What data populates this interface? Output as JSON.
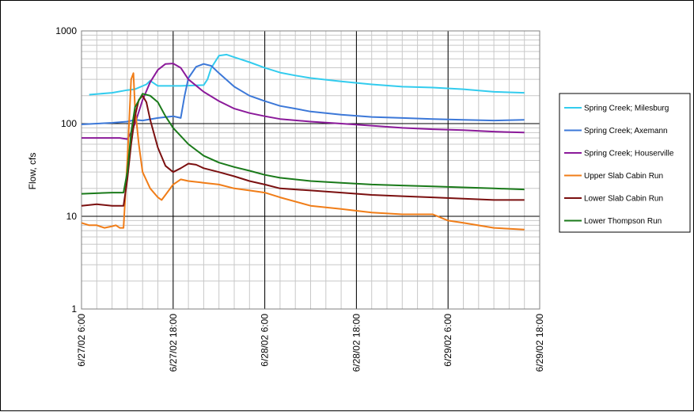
{
  "chart_data": {
    "type": "line",
    "title": "",
    "xlabel": "",
    "ylabel": "Flow, cfs",
    "y_scale": "log",
    "ylim": [
      1,
      1000
    ],
    "y_ticks": [
      "1",
      "10",
      "100",
      "1000"
    ],
    "xlim": [
      "6/27/02 6:00",
      "6/29/02 18:00"
    ],
    "x_tick_labels": [
      "6/27/02 6:00",
      "6/27/02 18:00",
      "6/28/02 6:00",
      "6/28/02 18:00",
      "6/29/02 6:00",
      "6/29/02 18:00"
    ],
    "grid": true,
    "legend_position": "right",
    "series": [
      {
        "name": "Spring Creek; Milesburg",
        "color": "#33ccee",
        "points": [
          [
            0,
            205
          ],
          [
            7,
            205
          ],
          [
            10,
            215
          ],
          [
            12,
            230
          ],
          [
            13,
            235
          ],
          [
            14.5,
            265
          ],
          [
            15,
            290
          ],
          [
            16,
            255
          ],
          [
            19,
            255
          ],
          [
            22,
            260
          ],
          [
            22.5,
            300
          ],
          [
            23,
            400
          ],
          [
            24,
            540
          ],
          [
            25,
            555
          ],
          [
            26,
            520
          ],
          [
            28,
            460
          ],
          [
            30,
            400
          ],
          [
            32,
            355
          ],
          [
            34,
            330
          ],
          [
            36,
            310
          ],
          [
            40,
            285
          ],
          [
            44,
            265
          ],
          [
            48,
            250
          ],
          [
            52,
            245
          ],
          [
            56,
            235
          ],
          [
            60,
            220
          ],
          [
            64,
            215
          ],
          [
            72,
            210
          ]
        ]
      },
      {
        "name": "Spring Creek; Axemann",
        "color": "#3c78d8",
        "points": [
          [
            0,
            100
          ],
          [
            4,
            100
          ],
          [
            6,
            98
          ],
          [
            8,
            100
          ],
          [
            10,
            102
          ],
          [
            12,
            105
          ],
          [
            13,
            110
          ],
          [
            14,
            108
          ],
          [
            16,
            115
          ],
          [
            18,
            120
          ],
          [
            19,
            115
          ],
          [
            19.5,
            200
          ],
          [
            20,
            310
          ],
          [
            21,
            410
          ],
          [
            22,
            440
          ],
          [
            23,
            420
          ],
          [
            24,
            350
          ],
          [
            26,
            250
          ],
          [
            28,
            200
          ],
          [
            30,
            175
          ],
          [
            32,
            155
          ],
          [
            34,
            145
          ],
          [
            36,
            135
          ],
          [
            40,
            125
          ],
          [
            44,
            118
          ],
          [
            48,
            115
          ],
          [
            52,
            112
          ],
          [
            56,
            110
          ],
          [
            60,
            108
          ],
          [
            64,
            110
          ],
          [
            72,
            110
          ]
        ]
      },
      {
        "name": "Spring Creek; Houserville",
        "color": "#8b1a9a",
        "points": [
          [
            0,
            70
          ],
          [
            6,
            70
          ],
          [
            11,
            70
          ],
          [
            12,
            68
          ],
          [
            12.5,
            80
          ],
          [
            13,
            100
          ],
          [
            14,
            180
          ],
          [
            15,
            280
          ],
          [
            16,
            380
          ],
          [
            17,
            440
          ],
          [
            18,
            445
          ],
          [
            19,
            400
          ],
          [
            20,
            300
          ],
          [
            22,
            220
          ],
          [
            24,
            175
          ],
          [
            26,
            145
          ],
          [
            28,
            130
          ],
          [
            30,
            120
          ],
          [
            32,
            112
          ],
          [
            36,
            105
          ],
          [
            40,
            100
          ],
          [
            44,
            95
          ],
          [
            48,
            90
          ],
          [
            52,
            87
          ],
          [
            56,
            85
          ],
          [
            60,
            82
          ],
          [
            64,
            80
          ],
          [
            72,
            78
          ]
        ]
      },
      {
        "name": "Upper Slab Cabin Run",
        "color": "#f07d18",
        "points": [
          [
            0,
            7.8
          ],
          [
            2,
            7.8
          ],
          [
            4,
            8
          ],
          [
            6,
            8.5
          ],
          [
            7,
            8
          ],
          [
            8,
            8
          ],
          [
            9,
            7.5
          ],
          [
            10,
            7.8
          ],
          [
            10.5,
            8
          ],
          [
            11,
            7.5
          ],
          [
            11.5,
            7.5
          ],
          [
            12,
            40
          ],
          [
            12.5,
            300
          ],
          [
            12.8,
            350
          ],
          [
            13,
            150
          ],
          [
            13.5,
            60
          ],
          [
            14,
            30
          ],
          [
            15,
            20
          ],
          [
            16,
            16
          ],
          [
            16.5,
            15
          ],
          [
            17,
            17
          ],
          [
            18,
            22
          ],
          [
            19,
            25
          ],
          [
            20,
            24
          ],
          [
            22,
            23
          ],
          [
            24,
            22
          ],
          [
            26,
            20
          ],
          [
            28,
            19
          ],
          [
            30,
            18
          ],
          [
            32,
            16
          ],
          [
            36,
            13
          ],
          [
            40,
            12
          ],
          [
            44,
            11
          ],
          [
            48,
            10.5
          ],
          [
            52,
            10.5
          ],
          [
            54,
            9
          ],
          [
            56,
            8.5
          ],
          [
            60,
            7.5
          ],
          [
            64,
            7.2
          ],
          [
            68,
            7
          ],
          [
            72,
            6.8
          ],
          [
            80,
            6.8
          ],
          [
            88,
            6.5
          ],
          [
            90,
            6.5
          ],
          [
            92,
            6.2
          ],
          [
            94,
            6.5
          ],
          [
            96,
            6.5
          ]
        ]
      },
      {
        "name": "Lower Slab Cabin Run",
        "color": "#7b1010",
        "points": [
          [
            0,
            13.5
          ],
          [
            4,
            13.5
          ],
          [
            6,
            13
          ],
          [
            8,
            13.5
          ],
          [
            10,
            13
          ],
          [
            11,
            13
          ],
          [
            11.5,
            13
          ],
          [
            12,
            25
          ],
          [
            12.5,
            60
          ],
          [
            13,
            120
          ],
          [
            13.5,
            180
          ],
          [
            14,
            200
          ],
          [
            14.5,
            170
          ],
          [
            15,
            110
          ],
          [
            16,
            55
          ],
          [
            17,
            35
          ],
          [
            18,
            30
          ],
          [
            19,
            33
          ],
          [
            20,
            37
          ],
          [
            21,
            36
          ],
          [
            22,
            33
          ],
          [
            24,
            30
          ],
          [
            26,
            27
          ],
          [
            28,
            24
          ],
          [
            30,
            22
          ],
          [
            32,
            20
          ],
          [
            36,
            19
          ],
          [
            40,
            18
          ],
          [
            44,
            17
          ],
          [
            48,
            16.5
          ],
          [
            52,
            16
          ],
          [
            56,
            15.5
          ],
          [
            60,
            15
          ],
          [
            64,
            15
          ],
          [
            72,
            14.5
          ],
          [
            80,
            14
          ],
          [
            88,
            13.5
          ],
          [
            96,
            13.2
          ]
        ]
      },
      {
        "name": "Lower Thompson Run",
        "color": "#1a7a1a",
        "points": [
          [
            0,
            17.5
          ],
          [
            6,
            17.5
          ],
          [
            10,
            18
          ],
          [
            11.5,
            18
          ],
          [
            12,
            30
          ],
          [
            12.5,
            80
          ],
          [
            13,
            150
          ],
          [
            14,
            210
          ],
          [
            15,
            200
          ],
          [
            16,
            170
          ],
          [
            17,
            120
          ],
          [
            18,
            90
          ],
          [
            20,
            60
          ],
          [
            22,
            45
          ],
          [
            24,
            38
          ],
          [
            26,
            34
          ],
          [
            28,
            31
          ],
          [
            30,
            28
          ],
          [
            32,
            26
          ],
          [
            36,
            24
          ],
          [
            40,
            23
          ],
          [
            44,
            22
          ],
          [
            48,
            21.5
          ],
          [
            52,
            21
          ],
          [
            56,
            20.5
          ],
          [
            60,
            20
          ],
          [
            64,
            19.5
          ],
          [
            72,
            19
          ],
          [
            80,
            18.5
          ],
          [
            88,
            18.2
          ],
          [
            96,
            18
          ]
        ]
      }
    ]
  }
}
